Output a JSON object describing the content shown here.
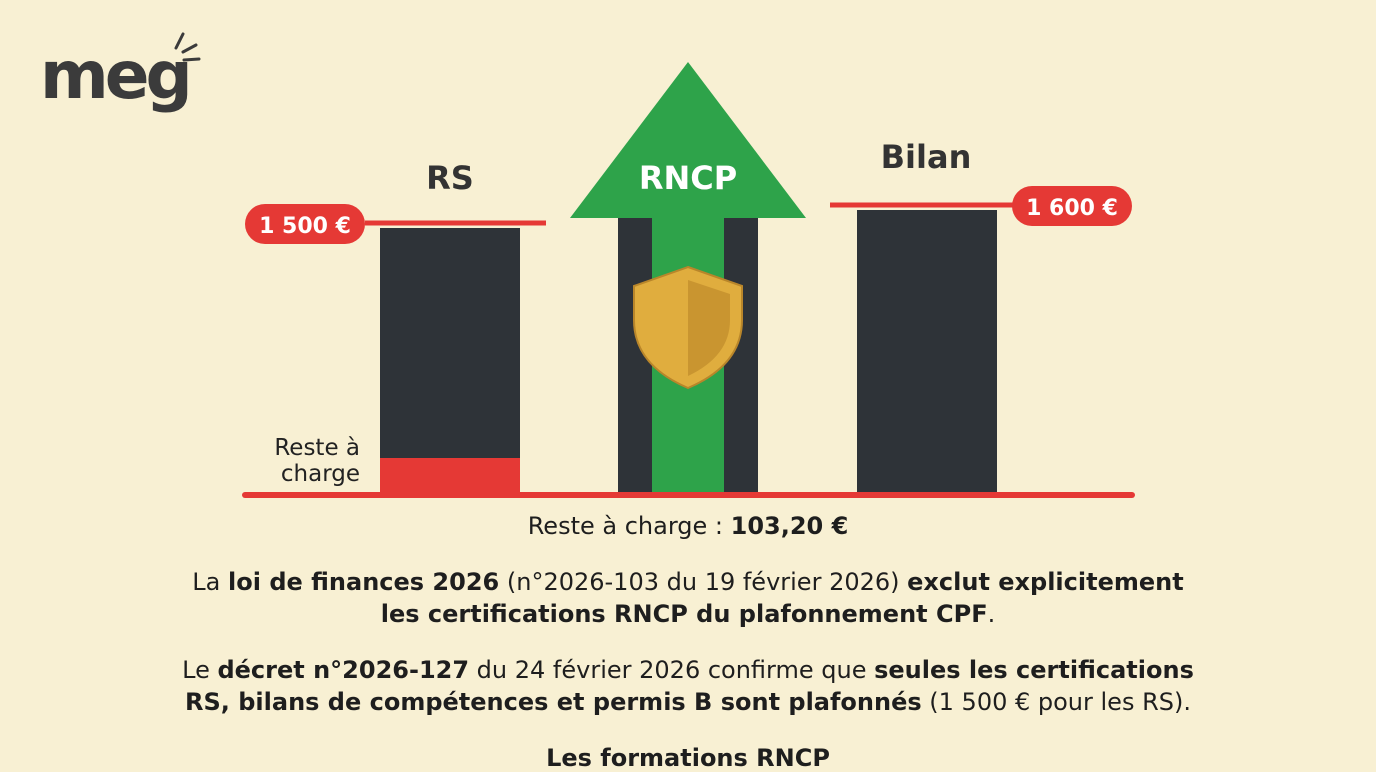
{
  "logo": "meg",
  "illustration": {
    "columns": [
      {
        "label": "RS",
        "price": "1 500 €"
      },
      {
        "label": "RNCP"
      },
      {
        "label": "Bilan",
        "price": "1 600 €"
      }
    ],
    "remainder_label": [
      "Reste à",
      "charge"
    ]
  },
  "caption": [
    {
      "text": "Reste à charge : ",
      "bold": false
    },
    {
      "text": "103,20 €",
      "bold": true
    }
  ],
  "paragraphs": [
    [
      [
        {
          "text": "La ",
          "bold": false
        },
        {
          "text": "loi de finances 2026",
          "bold": true
        },
        {
          "text": " (n°2026-103 du 19 février 2026) ",
          "bold": false
        },
        {
          "text": "exclut explicitement",
          "bold": true
        }
      ],
      [
        {
          "text": "les certifications RNCP du plafonnement CPF",
          "bold": true
        },
        {
          "text": ".",
          "bold": false
        }
      ]
    ],
    [
      [
        {
          "text": "Le ",
          "bold": false
        },
        {
          "text": "décret n°2026-127",
          "bold": true
        },
        {
          "text": " du 24 février 2026 confirme que ",
          "bold": false
        },
        {
          "text": "seules les certifications",
          "bold": true
        }
      ],
      [
        {
          "text": "RS, bilans de compétences et permis B sont plafonnés",
          "bold": true
        },
        {
          "text": " (1 500 € pour les RS).",
          "bold": false
        }
      ]
    ],
    [
      [
        {
          "text": "Les formations RNCP",
          "bold": true
        }
      ]
    ]
  ]
}
